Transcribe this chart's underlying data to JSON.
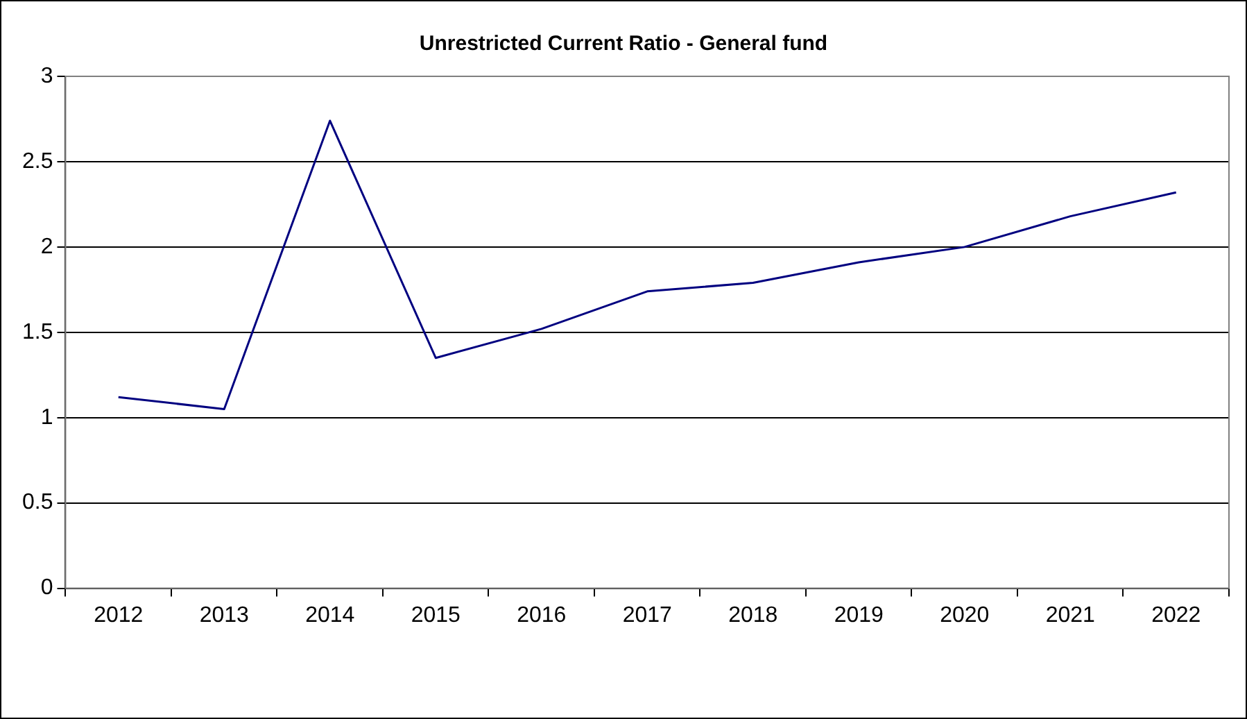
{
  "chart_data": {
    "type": "line",
    "title": "Unrestricted Current Ratio - General fund",
    "categories": [
      "2012",
      "2013",
      "2014",
      "2015",
      "2016",
      "2017",
      "2018",
      "2019",
      "2020",
      "2021",
      "2022"
    ],
    "series": [
      {
        "color": "#000080",
        "values": [
          1.12,
          1.05,
          2.74,
          1.35,
          1.52,
          1.74,
          1.79,
          1.91,
          2.0,
          2.18,
          2.32
        ]
      }
    ],
    "ylim": [
      0,
      3
    ],
    "yticks": [
      0,
      0.5,
      1,
      1.5,
      2,
      2.5,
      3
    ],
    "grid": "y",
    "legend": false,
    "marker": "none",
    "line_style": "solid"
  }
}
